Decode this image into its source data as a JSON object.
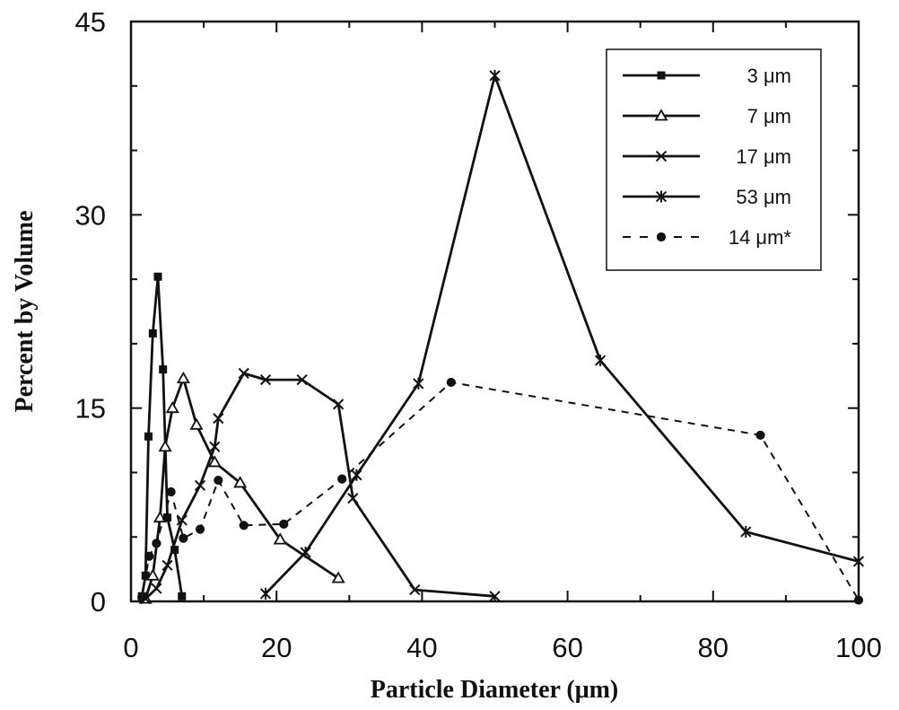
{
  "chart_data": {
    "type": "line",
    "title": "",
    "xlabel": "Particle Diameter (μm)",
    "ylabel": "Percent by Volume",
    "xlim": [
      0,
      100
    ],
    "ylim": [
      0,
      45
    ],
    "x_ticks": [
      "0",
      "20",
      "40",
      "60",
      "80",
      "100"
    ],
    "y_ticks": [
      "0",
      "15",
      "30",
      "45"
    ],
    "grid": false,
    "legend_position": "top-right",
    "colors": {
      "line": "#111111",
      "axis": "#111111",
      "background": "#ffffff"
    },
    "series": [
      {
        "name": "3 μm",
        "marker": "square",
        "dash": "solid",
        "points": [
          [
            1.5,
            0.4
          ],
          [
            2.0,
            2.0
          ],
          [
            2.4,
            12.8
          ],
          [
            3.0,
            20.8
          ],
          [
            3.7,
            25.2
          ],
          [
            4.4,
            18.0
          ],
          [
            5.0,
            6.5
          ],
          [
            6.0,
            4.0
          ],
          [
            7.0,
            0.4
          ]
        ]
      },
      {
        "name": "7 μm",
        "marker": "triangle",
        "dash": "solid",
        "points": [
          [
            2.0,
            0.2
          ],
          [
            3.0,
            2.0
          ],
          [
            4.0,
            6.5
          ],
          [
            4.7,
            12.0
          ],
          [
            5.7,
            15.0
          ],
          [
            7.2,
            17.3
          ],
          [
            9.0,
            13.7
          ],
          [
            11.5,
            10.8
          ],
          [
            15.0,
            9.2
          ],
          [
            20.5,
            4.8
          ],
          [
            28.5,
            1.8
          ]
        ]
      },
      {
        "name": "17 μm",
        "marker": "x",
        "dash": "solid",
        "points": [
          [
            2.0,
            0.2
          ],
          [
            3.5,
            1.0
          ],
          [
            5.0,
            2.8
          ],
          [
            7.0,
            6.3
          ],
          [
            9.5,
            9.0
          ],
          [
            11.5,
            12.0
          ],
          [
            12.0,
            14.2
          ],
          [
            15.5,
            17.7
          ],
          [
            18.5,
            17.2
          ],
          [
            23.5,
            17.2
          ],
          [
            28.5,
            15.3
          ],
          [
            30.5,
            8.0
          ],
          [
            39.0,
            0.9
          ],
          [
            50.0,
            0.4
          ]
        ]
      },
      {
        "name": "53 μm",
        "marker": "asterisk",
        "dash": "solid",
        "points": [
          [
            18.5,
            0.6
          ],
          [
            24.0,
            3.8
          ],
          [
            31.0,
            9.8
          ],
          [
            39.5,
            16.9
          ],
          [
            50.0,
            40.8
          ],
          [
            64.5,
            18.7
          ],
          [
            84.5,
            5.4
          ],
          [
            100.0,
            3.1
          ]
        ]
      },
      {
        "name": "14 μm*",
        "marker": "circle",
        "dash": "dashed",
        "points": [
          [
            1.5,
            0.3
          ],
          [
            2.5,
            3.5
          ],
          [
            3.5,
            4.5
          ],
          [
            5.5,
            8.5
          ],
          [
            7.2,
            4.9
          ],
          [
            9.5,
            5.6
          ],
          [
            12.0,
            9.4
          ],
          [
            15.5,
            5.9
          ],
          [
            21.0,
            6.0
          ],
          [
            29.0,
            9.5
          ],
          [
            44.0,
            17.0
          ],
          [
            86.5,
            12.9
          ],
          [
            100.0,
            0.1
          ]
        ]
      }
    ]
  }
}
